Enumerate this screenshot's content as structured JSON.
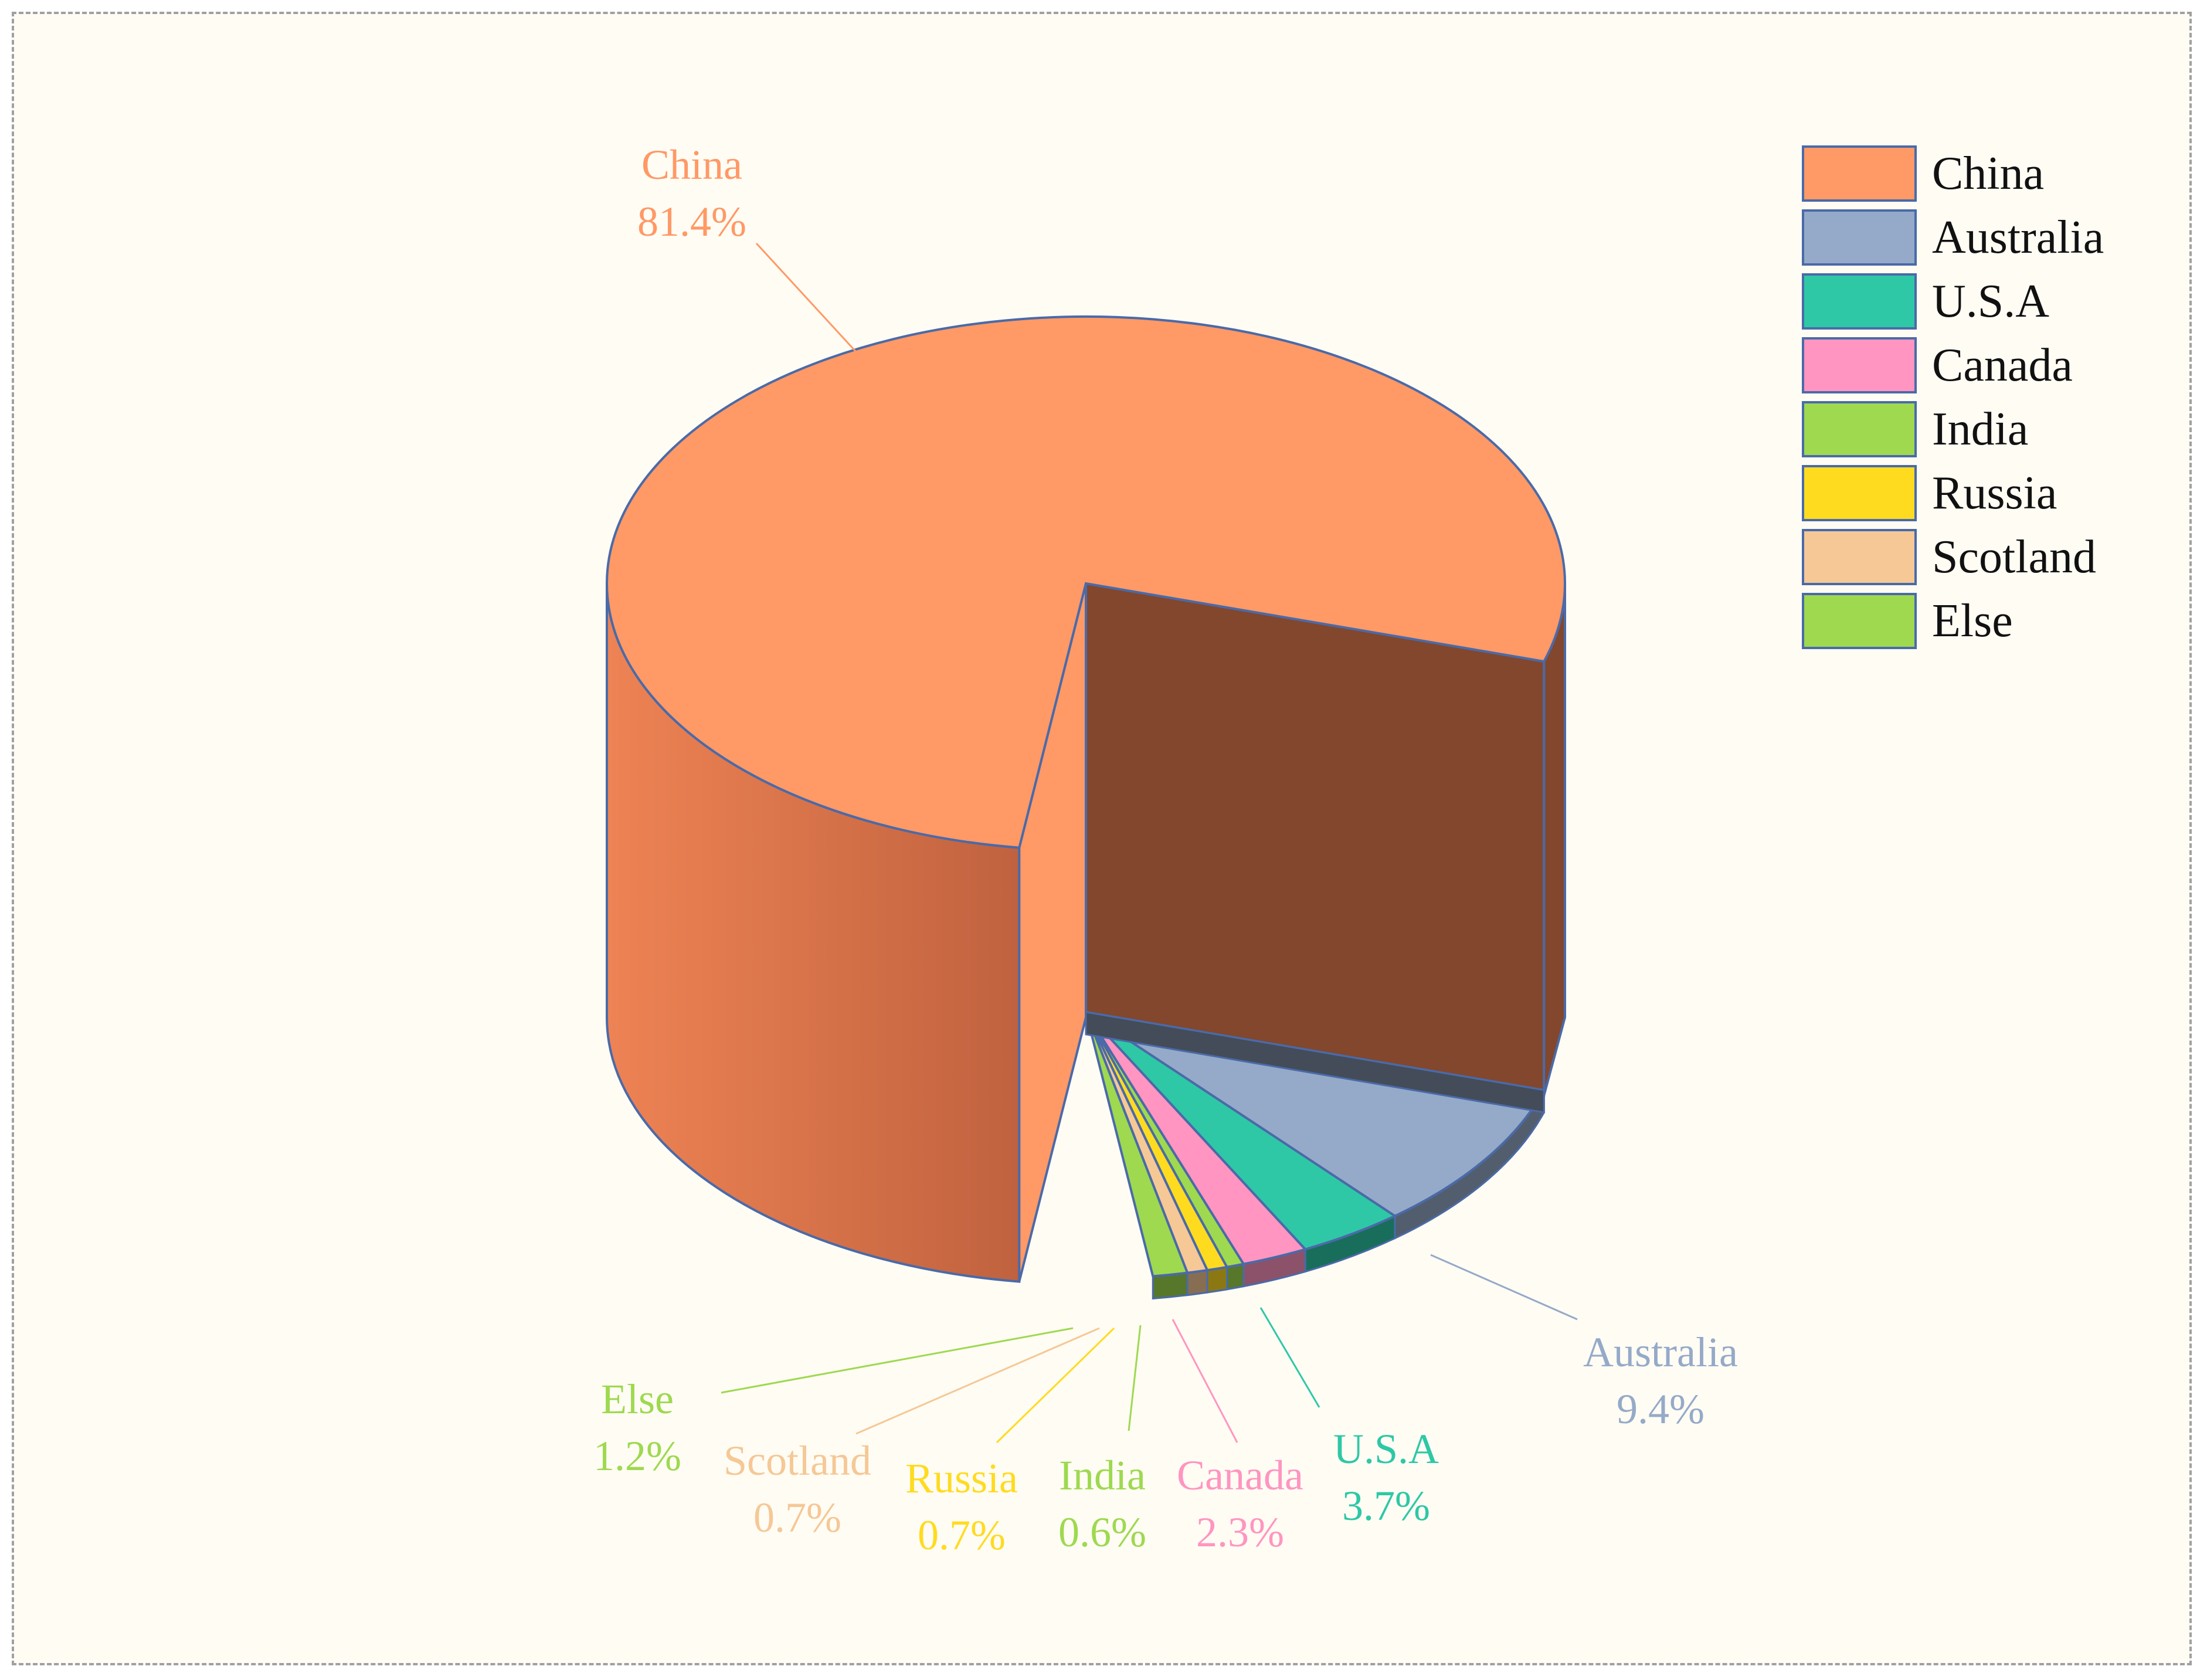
{
  "chart_data": {
    "type": "pie",
    "style": "3d",
    "categories": [
      "China",
      "Australia",
      "U.S.A",
      "Canada",
      "India",
      "Russia",
      "Scotland",
      "Else"
    ],
    "values": [
      81.4,
      9.4,
      3.7,
      2.3,
      0.6,
      0.7,
      0.7,
      1.2
    ],
    "value_labels": [
      "81.4%",
      "9.4%",
      "3.7%",
      "2.3%",
      "0.6%",
      "0.7%",
      "0.7%",
      "1.2%"
    ],
    "colors": [
      "#FF9966",
      "#95AAC8",
      "#2EC8A6",
      "#FF95C0",
      "#9ED94F",
      "#FFDB20",
      "#F5C896",
      "#9ED94F"
    ],
    "legend_position": "top-right",
    "exploded": [
      "China"
    ]
  }
}
